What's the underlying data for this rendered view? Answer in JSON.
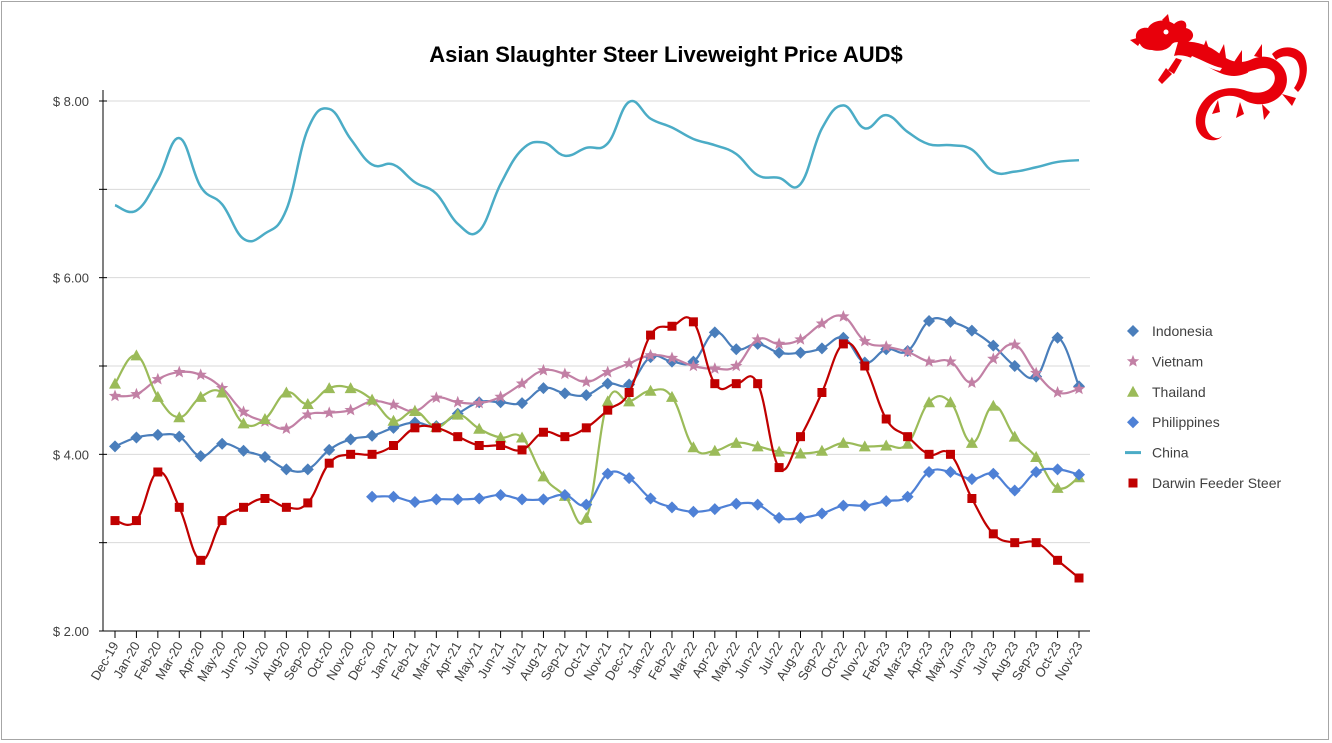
{
  "chart_data": {
    "type": "line",
    "title": "Asian Slaughter Steer Liveweight Price AUD$",
    "ylim": [
      2,
      8
    ],
    "yticks": [
      "$ 2.00",
      "$ 4.00",
      "$ 6.00",
      "$ 8.00"
    ],
    "grid": true,
    "legend": "right",
    "categories": [
      "Dec-19",
      "Jan-20",
      "Feb-20",
      "Mar-20",
      "Apr-20",
      "May-20",
      "Jun-20",
      "Jul-20",
      "Aug-20",
      "Sep-20",
      "Oct-20",
      "Nov-20",
      "Dec-20",
      "Jan-21",
      "Feb-21",
      "Mar-21",
      "Apr-21",
      "May-21",
      "Jun-21",
      "Jul-21",
      "Aug-21",
      "Sep-21",
      "Oct-21",
      "Nov-21",
      "Dec-21",
      "Jan-22",
      "Feb-22",
      "Mar-22",
      "Apr-22",
      "May-22",
      "Jun-22",
      "Jul-22",
      "Aug-22",
      "Sep-22",
      "Oct-22",
      "Nov-22",
      "Feb-23",
      "Mar-23",
      "Apr-23",
      "May-23",
      "Jun-23",
      "Jul-23",
      "Aug-23",
      "Sep-23",
      "Oct-23",
      "Nov-23"
    ],
    "series": [
      {
        "name": "Indonesia",
        "color": "#4a7ebb",
        "marker": "diamond",
        "values": [
          4.09,
          4.19,
          4.22,
          4.2,
          3.98,
          4.12,
          4.04,
          3.97,
          3.83,
          3.83,
          4.05,
          4.17,
          4.21,
          4.3,
          4.36,
          4.32,
          4.46,
          4.59,
          4.59,
          4.58,
          4.75,
          4.69,
          4.67,
          4.8,
          4.79,
          5.1,
          5.05,
          5.05,
          5.38,
          5.19,
          5.25,
          5.15,
          5.15,
          5.2,
          5.32,
          5.04,
          5.19,
          5.17,
          5.51,
          5.5,
          5.4,
          5.23,
          5.0,
          4.88,
          5.32,
          4.77
        ]
      },
      {
        "name": "Vietnam",
        "color": "#c280a5",
        "marker": "star",
        "values": [
          4.66,
          4.68,
          4.85,
          4.93,
          4.9,
          4.75,
          4.48,
          4.37,
          4.29,
          4.45,
          4.47,
          4.5,
          4.6,
          4.56,
          4.49,
          4.64,
          4.59,
          4.58,
          4.65,
          4.8,
          4.95,
          4.91,
          4.82,
          4.93,
          5.03,
          5.12,
          5.09,
          5.0,
          4.97,
          5.0,
          5.3,
          5.25,
          5.3,
          5.48,
          5.56,
          5.28,
          5.22,
          5.16,
          5.05,
          5.05,
          4.81,
          5.08,
          5.24,
          4.92,
          4.7,
          4.74
        ]
      },
      {
        "name": "Thailand",
        "color": "#9bbb59",
        "marker": "triangle",
        "values": [
          4.8,
          5.12,
          4.65,
          4.42,
          4.65,
          4.7,
          4.35,
          4.4,
          4.7,
          4.57,
          4.75,
          4.75,
          4.62,
          4.38,
          4.49,
          4.31,
          4.45,
          4.29,
          4.19,
          4.19,
          3.75,
          3.53,
          3.28,
          4.6,
          4.6,
          4.72,
          4.65,
          4.08,
          4.04,
          4.13,
          4.09,
          4.03,
          4.01,
          4.04,
          4.13,
          4.09,
          4.1,
          4.12,
          4.59,
          4.59,
          4.13,
          4.55,
          4.2,
          3.97,
          3.62,
          3.74
        ]
      },
      {
        "name": "Philippines",
        "color": "#4f81d6",
        "marker": "diamond",
        "values": [
          null,
          null,
          null,
          null,
          null,
          null,
          null,
          null,
          null,
          null,
          null,
          null,
          3.52,
          3.52,
          3.46,
          3.49,
          3.49,
          3.5,
          3.54,
          3.49,
          3.49,
          3.54,
          3.43,
          3.78,
          3.73,
          3.5,
          3.4,
          3.35,
          3.38,
          3.44,
          3.43,
          3.28,
          3.28,
          3.33,
          3.42,
          3.42,
          3.47,
          3.52,
          3.8,
          3.8,
          3.72,
          3.78,
          3.59,
          3.8,
          3.83,
          3.77
        ]
      },
      {
        "name": "China",
        "color": "#4bacc6",
        "marker": "none",
        "values": [
          6.82,
          6.76,
          7.11,
          7.58,
          7.03,
          6.83,
          6.44,
          6.5,
          6.77,
          7.68,
          7.91,
          7.57,
          7.28,
          7.28,
          7.08,
          6.95,
          6.61,
          6.53,
          7.06,
          7.45,
          7.53,
          7.38,
          7.47,
          7.52,
          7.99,
          7.8,
          7.7,
          7.57,
          7.5,
          7.4,
          7.16,
          7.13,
          7.06,
          7.69,
          7.95,
          7.69,
          7.84,
          7.65,
          7.51,
          7.5,
          7.45,
          7.2,
          7.2,
          7.25,
          7.31,
          7.33
        ]
      },
      {
        "name": "Darwin Feeder Steer",
        "color": "#c00000",
        "marker": "square",
        "values": [
          3.25,
          3.25,
          3.8,
          3.4,
          2.8,
          3.25,
          3.4,
          3.5,
          3.4,
          3.45,
          3.9,
          4.0,
          4.0,
          4.1,
          4.3,
          4.3,
          4.2,
          4.1,
          4.1,
          4.05,
          4.25,
          4.2,
          4.3,
          4.5,
          4.7,
          5.35,
          5.45,
          5.5,
          4.8,
          4.8,
          4.8,
          3.85,
          4.2,
          4.7,
          5.25,
          5.0,
          4.4,
          4.2,
          4.0,
          4.0,
          3.5,
          3.1,
          3.0,
          3.0,
          2.8,
          2.6
        ]
      }
    ]
  }
}
